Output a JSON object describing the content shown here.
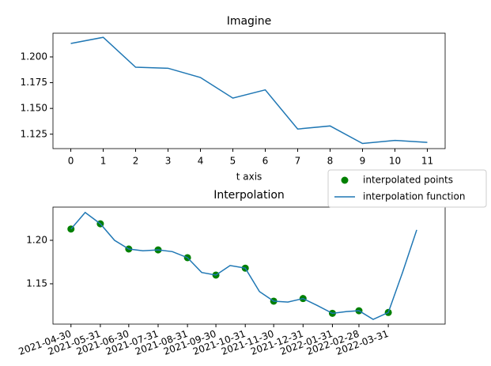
{
  "chart_data": [
    {
      "type": "line",
      "title": "Imagine",
      "xlabel": "t axis",
      "x": [
        0,
        1,
        2,
        3,
        4,
        5,
        6,
        7,
        8,
        9,
        10,
        11
      ],
      "series": [
        {
          "color": "#1f77b4",
          "values": [
            1.213,
            1.219,
            1.19,
            1.189,
            1.18,
            1.16,
            1.168,
            1.13,
            1.133,
            1.116,
            1.119,
            1.117
          ]
        }
      ],
      "xlim": [
        -0.55,
        11.55
      ],
      "xticks": [
        0,
        1,
        2,
        3,
        4,
        5,
        6,
        7,
        8,
        9,
        10,
        11
      ],
      "ylim": [
        1.111,
        1.223
      ],
      "yticks": [
        1.125,
        {
          "value": 1.15,
          "label": "1.150"
        },
        1.175,
        {
          "value": 1.2,
          "label": "1.200"
        }
      ]
    },
    {
      "type": "line",
      "title": "Interpolation",
      "legend": "upper right",
      "xtick_rotation": 20,
      "series": [
        {
          "name": "interpolated points",
          "color": "green",
          "mode": "markers",
          "x": [
            "2021-04-30",
            "2021-05-31",
            "2021-06-30",
            "2021-07-31",
            "2021-08-31",
            "2021-09-30",
            "2021-10-31",
            "2021-11-30",
            "2021-12-31",
            "2022-01-31",
            "2022-02-28",
            "2022-03-31"
          ],
          "values": [
            1.213,
            1.219,
            1.19,
            1.189,
            1.18,
            1.16,
            1.168,
            1.13,
            1.133,
            1.116,
            1.119,
            1.117
          ]
        },
        {
          "name": "interpolation function",
          "color": "#1f77b4",
          "mode": "line",
          "x": [
            "2021-04-30",
            "2021-05-15",
            "2021-05-31",
            "2021-06-15",
            "2021-06-30",
            "2021-07-15",
            "2021-07-31",
            "2021-08-15",
            "2021-08-31",
            "2021-09-15",
            "2021-09-30",
            "2021-10-15",
            "2021-10-31",
            "2021-11-15",
            "2021-11-30",
            "2021-12-15",
            "2021-12-31",
            "2022-01-15",
            "2022-01-31",
            "2022-02-15",
            "2022-02-28",
            "2022-03-15",
            "2022-03-31",
            "2022-04-15",
            "2022-04-30"
          ],
          "values": [
            1.213,
            1.232,
            1.219,
            1.2,
            1.19,
            1.188,
            1.189,
            1.187,
            1.18,
            1.163,
            1.16,
            1.171,
            1.168,
            1.141,
            1.13,
            1.129,
            1.133,
            1.125,
            1.116,
            1.118,
            1.119,
            1.109,
            1.117,
            1.163,
            1.212
          ]
        }
      ],
      "xlim": [
        "2021-04-11",
        "2022-05-30"
      ],
      "xticks": [
        "2021-04-30",
        "2021-05-31",
        "2021-06-30",
        "2021-07-31",
        "2021-08-31",
        "2021-09-30",
        "2021-10-31",
        "2021-11-30",
        "2021-12-31",
        "2022-01-31",
        "2022-02-28",
        "2022-03-31"
      ],
      "ylim": [
        1.1036,
        1.2382
      ],
      "yticks": [
        {
          "value": 1.15,
          "label": "1.15"
        },
        {
          "value": 1.2,
          "label": "1.20"
        }
      ]
    }
  ]
}
